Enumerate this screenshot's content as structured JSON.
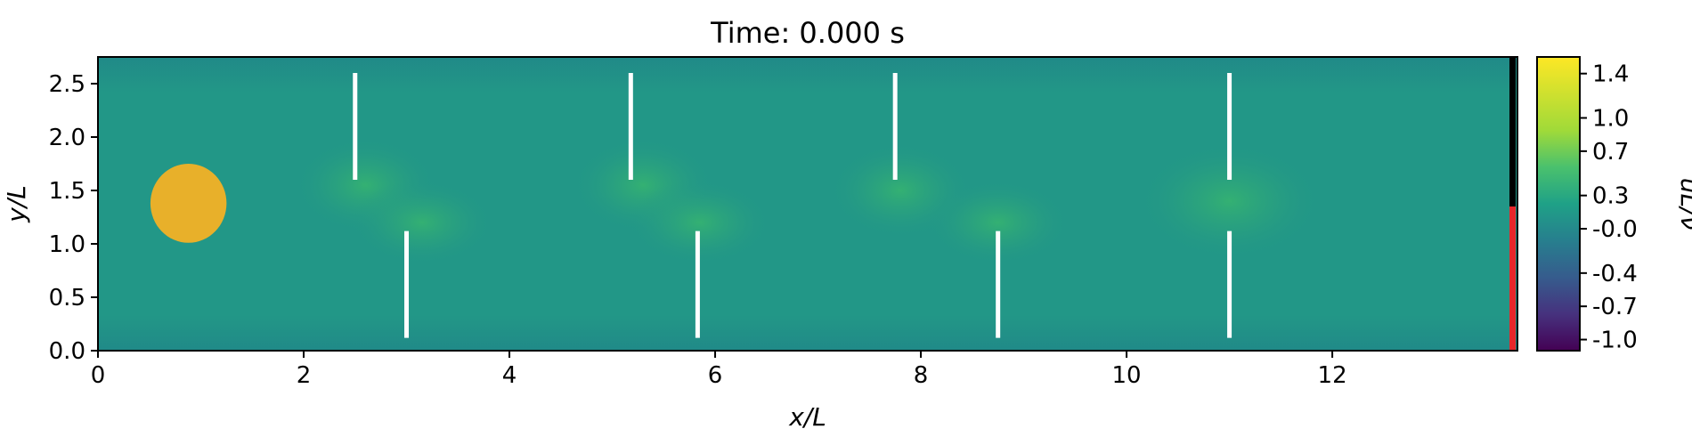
{
  "chart_data": {
    "type": "heatmap",
    "title": "Time: 0.000 s",
    "xlabel": "x/L",
    "ylabel": "y/L",
    "xlim": [
      0,
      13.8
    ],
    "ylim": [
      0,
      2.75
    ],
    "x_ticks": [
      0,
      2,
      4,
      6,
      8,
      10,
      12
    ],
    "x_tick_labels": [
      "0",
      "2",
      "4",
      "6",
      "8",
      "10",
      "12"
    ],
    "y_ticks": [
      0.0,
      0.5,
      1.0,
      1.5,
      2.0,
      2.5
    ],
    "y_tick_labels": [
      "0.0",
      "0.5",
      "1.0",
      "1.5",
      "2.0",
      "2.5"
    ],
    "colorbar": {
      "label": "uL/ν",
      "colormap": "viridis",
      "range": [
        -1.1,
        1.55
      ],
      "ticks": [
        1.4,
        1.0,
        0.7,
        0.3,
        -0.0,
        -0.4,
        -0.7,
        -1.0
      ],
      "tick_labels": [
        "1.4",
        "1.0",
        "0.7",
        "0.3",
        "-0.0",
        "-0.4",
        "-0.7",
        "-1.0"
      ]
    },
    "background_color": "#229787",
    "obstacle": {
      "shape": "circle",
      "cx": 0.88,
      "cy": 1.38,
      "r": 0.37,
      "color": "#e8b02a"
    },
    "plates": [
      {
        "x": 2.5,
        "y0": 1.6,
        "y1": 2.6
      },
      {
        "x": 5.18,
        "y0": 1.6,
        "y1": 2.6
      },
      {
        "x": 7.75,
        "y0": 1.6,
        "y1": 2.6
      },
      {
        "x": 11.0,
        "y0": 1.6,
        "y1": 2.6
      },
      {
        "x": 3.0,
        "y0": 0.12,
        "y1": 1.12
      },
      {
        "x": 5.83,
        "y0": 0.12,
        "y1": 1.12
      },
      {
        "x": 8.75,
        "y0": 0.12,
        "y1": 1.12
      },
      {
        "x": 11.0,
        "y0": 0.12,
        "y1": 1.12
      }
    ],
    "wakes": [
      {
        "x": 2.6,
        "y": 1.55,
        "rx": 0.7,
        "ry": 0.45
      },
      {
        "x": 3.15,
        "y": 1.2,
        "rx": 0.7,
        "ry": 0.4
      },
      {
        "x": 5.3,
        "y": 1.55,
        "rx": 0.7,
        "ry": 0.45
      },
      {
        "x": 5.85,
        "y": 1.2,
        "rx": 0.7,
        "ry": 0.4
      },
      {
        "x": 7.8,
        "y": 1.5,
        "rx": 0.7,
        "ry": 0.45
      },
      {
        "x": 8.75,
        "y": 1.2,
        "rx": 0.7,
        "ry": 0.4
      },
      {
        "x": 11.0,
        "y": 1.4,
        "rx": 0.9,
        "ry": 0.55
      }
    ],
    "outlet_bar": [
      {
        "y0": 1.35,
        "y1": 2.75,
        "color": "#000000"
      },
      {
        "y0": 0.0,
        "y1": 1.35,
        "color": "#e8262a"
      }
    ]
  }
}
